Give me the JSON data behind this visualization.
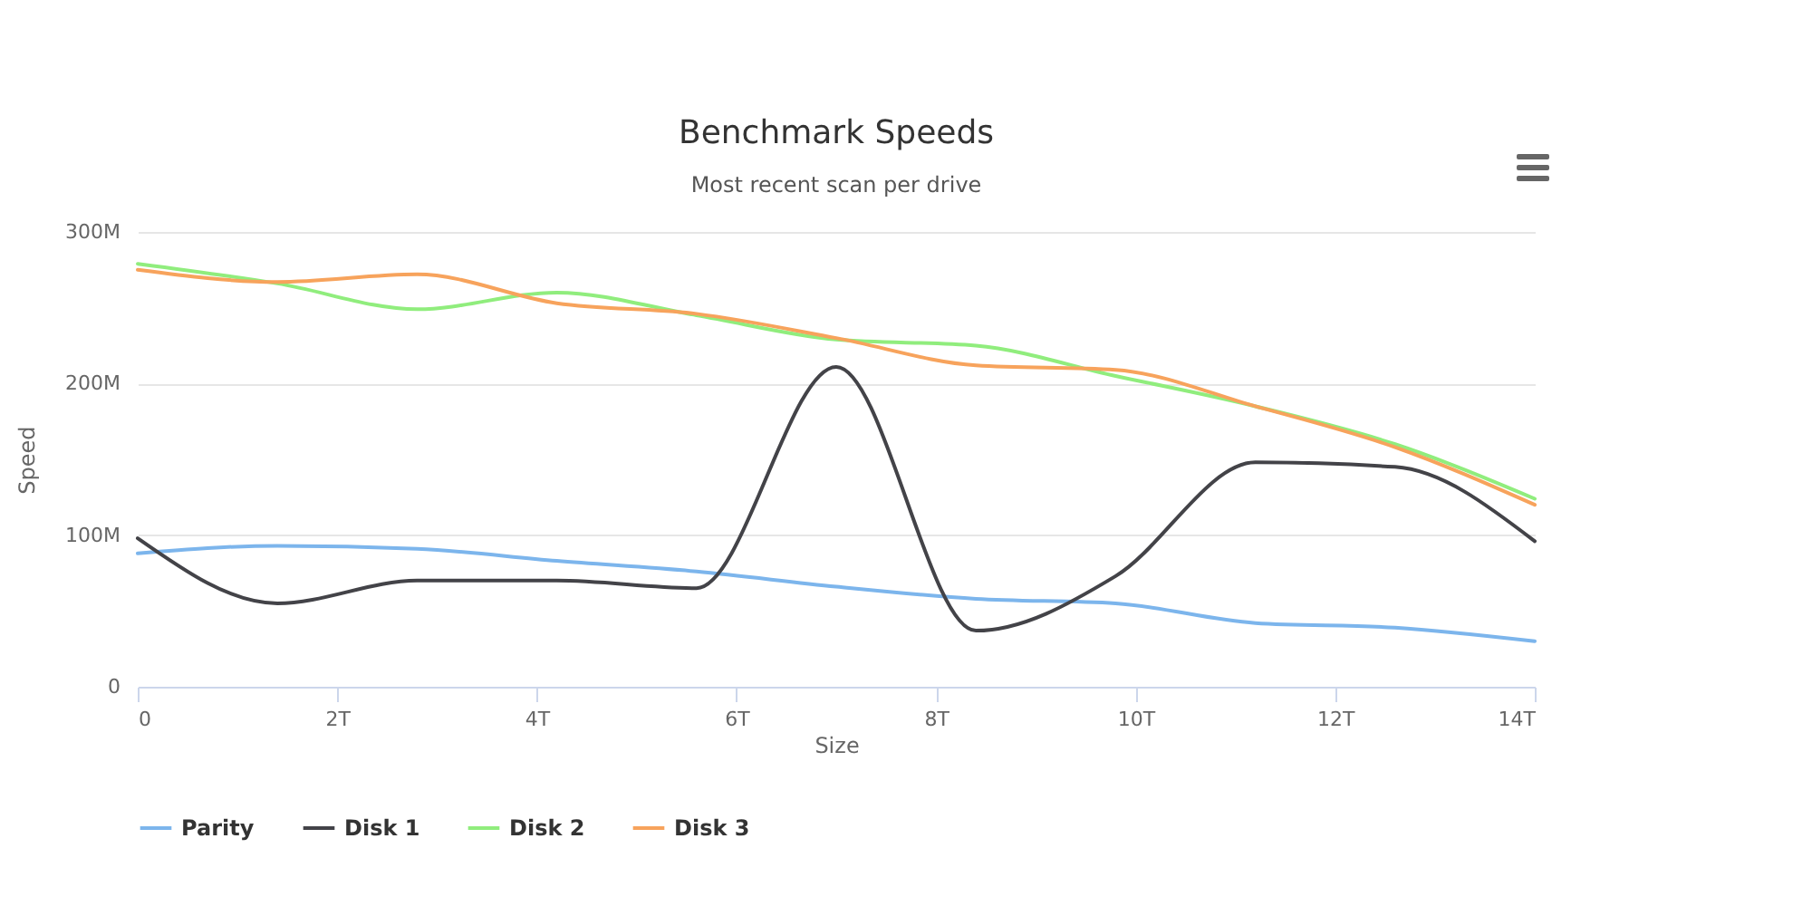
{
  "chart_data": {
    "type": "line",
    "title": "Benchmark Speeds",
    "subtitle": "Most recent scan per drive",
    "xlabel": "Size",
    "ylabel": "Speed",
    "x": [
      0,
      1.4,
      2.8,
      4.2,
      5.6,
      7.0,
      8.4,
      9.8,
      11.2,
      12.6,
      14
    ],
    "series": [
      {
        "name": "Parity",
        "color": "#7cb5ec",
        "values": [
          88,
          93,
          91,
          83,
          76,
          66,
          58,
          55,
          42,
          39,
          30
        ]
      },
      {
        "name": "Disk 1",
        "color": "#434348",
        "values": [
          98,
          55,
          70,
          70,
          65,
          211,
          37,
          73,
          148,
          145,
          96
        ]
      },
      {
        "name": "Disk 2",
        "color": "#90ed7d",
        "values": [
          279,
          266,
          249,
          260,
          245,
          229,
          225,
          205,
          185,
          160,
          124
        ]
      },
      {
        "name": "Disk 3",
        "color": "#f7a35c",
        "values": [
          275,
          267,
          272,
          253,
          246,
          230,
          212,
          209,
          185,
          158,
          120
        ]
      }
    ],
    "xlim": [
      0,
      14
    ],
    "xticks": [
      0,
      {
        "value": 2,
        "label": "2T"
      },
      {
        "value": 4,
        "label": "4T"
      },
      {
        "value": 6,
        "label": "6T"
      },
      {
        "value": 8,
        "label": "8T"
      },
      {
        "value": 10,
        "label": "10T"
      },
      {
        "value": 12,
        "label": "12T"
      },
      {
        "value": 14,
        "label": "14T"
      }
    ],
    "ylim": [
      0,
      300
    ],
    "yticks": [
      0,
      {
        "value": 100,
        "label": "100M"
      },
      {
        "value": 200,
        "label": "200M"
      },
      {
        "value": 300,
        "label": "300M"
      }
    ],
    "grid": "y",
    "legend": "bottom",
    "marker": "none",
    "line_style": "solid"
  }
}
